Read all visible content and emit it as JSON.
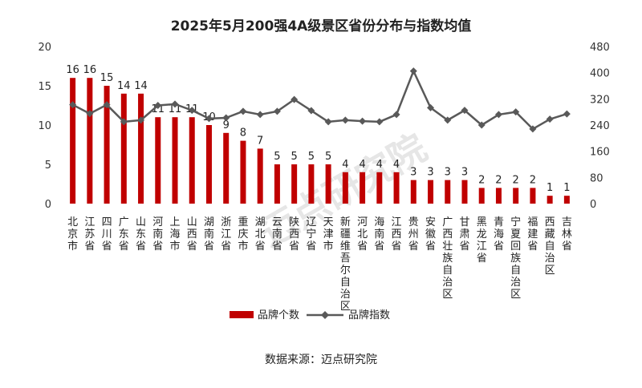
{
  "chart_data": {
    "type": "bar",
    "title": "2025年5月200强4A级景区省份分布与指数均值",
    "categories": [
      "北京市",
      "江苏省",
      "四川省",
      "广东省",
      "山东省",
      "河南省",
      "上海市",
      "山西省",
      "湖南省",
      "浙江省",
      "重庆市",
      "湖北省",
      "云南省",
      "陕西省",
      "辽宁省",
      "天津市",
      "新疆维吾尔自治区",
      "河北省",
      "海南省",
      "江西省",
      "贵州省",
      "安徽省",
      "广西壮族自治区",
      "甘肃省",
      "黑龙江省",
      "青海省",
      "宁夏回族自治区",
      "福建省",
      "西藏自治区",
      "吉林省"
    ],
    "series": [
      {
        "name": "品牌个数",
        "axis": "left",
        "type": "bar",
        "color": "#c00000",
        "values": [
          16,
          16,
          15,
          14,
          14,
          11,
          11,
          11,
          10,
          9,
          8,
          7,
          5,
          5,
          5,
          5,
          4,
          4,
          4,
          4,
          3,
          3,
          3,
          3,
          2,
          2,
          2,
          2,
          1,
          1
        ]
      },
      {
        "name": "品牌指数",
        "axis": "right",
        "type": "line",
        "color": "#595959",
        "values": [
          302,
          275,
          302,
          250,
          255,
          300,
          304,
          285,
          260,
          262,
          282,
          272,
          282,
          318,
          284,
          250,
          255,
          252,
          250,
          272,
          405,
          293,
          255,
          285,
          240,
          272,
          280,
          228,
          258,
          274
        ]
      }
    ],
    "ylim_left": [
      0,
      20
    ],
    "yticks_left": [
      0,
      5,
      10,
      15,
      20
    ],
    "ylim_right": [
      0,
      480
    ],
    "yticks_right": [
      0,
      80,
      160,
      240,
      320,
      400,
      480
    ],
    "legend_position": "bottom"
  },
  "source_text": "数据来源：迈点研究院",
  "watermark_text": "迈点研究院"
}
